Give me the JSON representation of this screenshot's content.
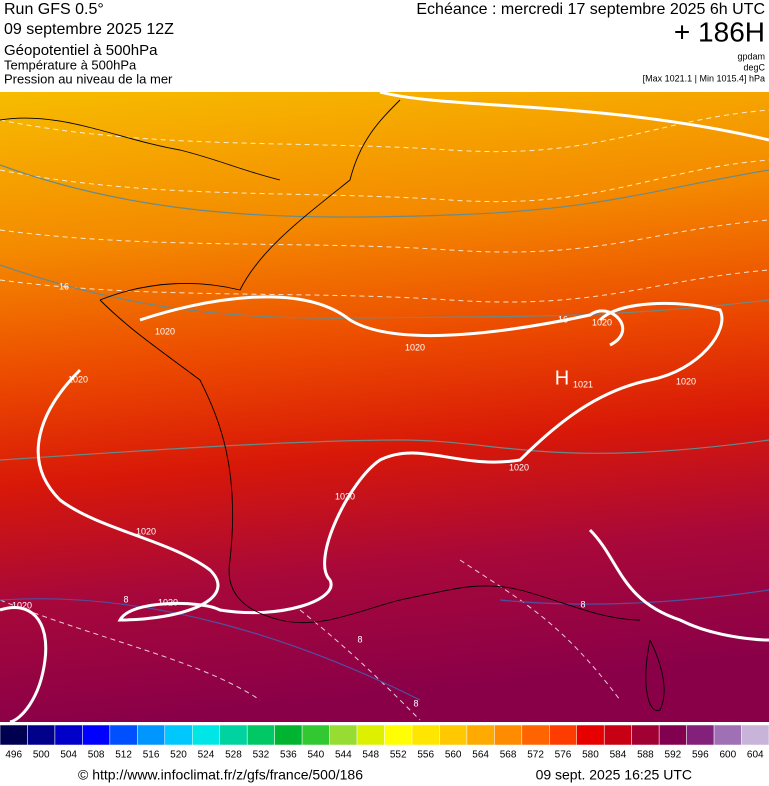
{
  "header": {
    "run": "Run GFS 0.5°",
    "run_date": "09 septembre 2025 12Z",
    "field": "Géopotentiel à 500hPa",
    "field2": "Température à 500hPa",
    "field3": "Pression au niveau de la mer",
    "valid": "Echéance : mercredi 17 septembre 2025 6h UTC",
    "lead": "+ 186H",
    "unit1": "gpdam",
    "unit2": "degC",
    "unit3": "[Max 1021.1 | Min 1015.4] hPa"
  },
  "map_labels": [
    "16",
    "16",
    "1020",
    "1020",
    "1020",
    "1020",
    "1020",
    "1020",
    "1020",
    "1020",
    "1020",
    "1020",
    "H",
    "1021",
    "8",
    "8",
    "8",
    "8"
  ],
  "colorbar": {
    "labels": [
      "496",
      "500",
      "504",
      "508",
      "512",
      "516",
      "520",
      "524",
      "528",
      "532",
      "536",
      "540",
      "544",
      "548",
      "552",
      "556",
      "560",
      "564",
      "568",
      "572",
      "576",
      "580",
      "584",
      "588",
      "592",
      "596",
      "600",
      "604"
    ],
    "colors": [
      "#000050",
      "#00008b",
      "#0000c8",
      "#0000ff",
      "#0050ff",
      "#0096ff",
      "#00c8ff",
      "#00e6e6",
      "#00d2a0",
      "#00c864",
      "#00b432",
      "#32c832",
      "#96dc32",
      "#dcf000",
      "#ffff00",
      "#ffe600",
      "#ffc800",
      "#ffaa00",
      "#ff8c00",
      "#ff6400",
      "#ff3c00",
      "#e60000",
      "#c80014",
      "#a00032",
      "#820050",
      "#82207a",
      "#a070b4",
      "#c8b4d8"
    ]
  },
  "footer": {
    "url": "© http://www.infoclimat.fr/z/gfs/france/500/186",
    "stamp": "09 sept. 2025 16:25 UTC"
  }
}
